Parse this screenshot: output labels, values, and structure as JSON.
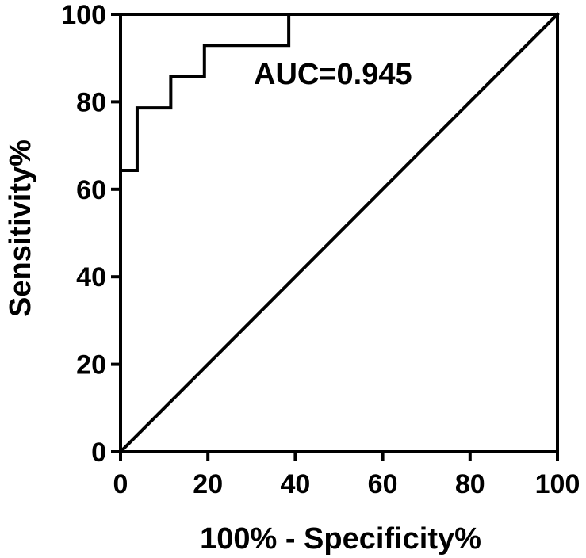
{
  "chart_data": {
    "type": "line",
    "title": "",
    "xlabel": "100% - Specificity%",
    "ylabel": "Sensitivity%",
    "xlim": [
      0,
      100
    ],
    "ylim": [
      0,
      100
    ],
    "x_ticks": [
      0,
      20,
      40,
      60,
      80,
      100
    ],
    "y_ticks": [
      0,
      20,
      40,
      60,
      80,
      100
    ],
    "x_tick_labels": [
      "0",
      "20",
      "40",
      "60",
      "80",
      "100"
    ],
    "y_tick_labels": [
      "0",
      "20",
      "40",
      "60",
      "80",
      "100"
    ],
    "grid": false,
    "legend": "none",
    "annotation": "AUC=0.945",
    "series": [
      {
        "x": [
          0,
          0,
          3.8,
          3.8,
          11.5,
          11.5,
          19.2,
          19.2,
          38.5,
          38.5,
          100
        ],
        "y": [
          0,
          64.3,
          64.3,
          78.6,
          78.6,
          85.7,
          85.7,
          92.9,
          92.9,
          100,
          100
        ],
        "color": "#000000"
      },
      {
        "x": [
          0,
          100
        ],
        "y": [
          0,
          100
        ],
        "color": "#000000"
      }
    ]
  }
}
